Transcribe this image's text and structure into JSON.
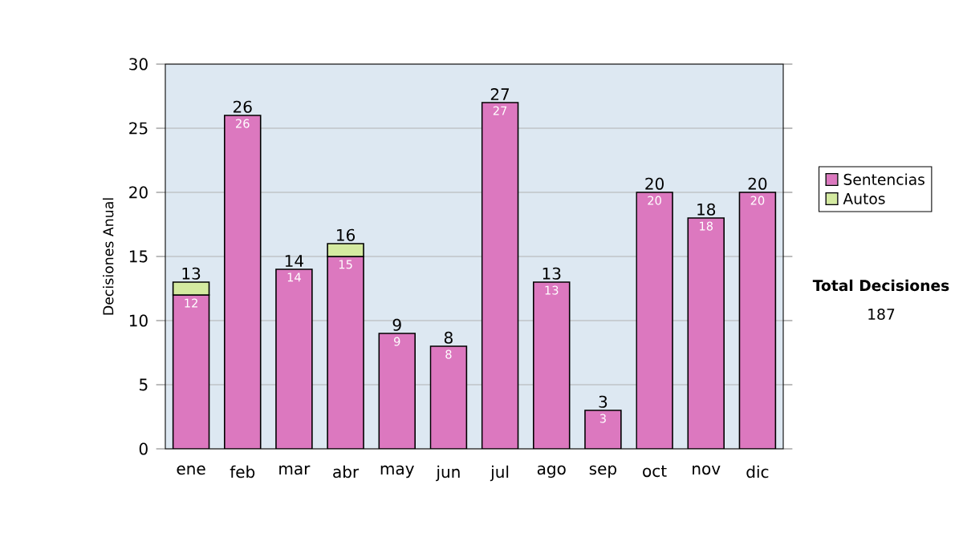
{
  "chart_data": {
    "type": "bar",
    "stacked": true,
    "ylabel": "Decisiones Anual",
    "categories": [
      "ene",
      "feb",
      "mar",
      "abr",
      "may",
      "jun",
      "jul",
      "ago",
      "sep",
      "oct",
      "nov",
      "dic"
    ],
    "series": [
      {
        "name": "Sentencias",
        "color": "#dc78bf",
        "values": [
          12,
          26,
          14,
          15,
          9,
          8,
          27,
          13,
          3,
          20,
          18,
          20
        ],
        "value_labels": [
          "12",
          "26",
          "14",
          "15",
          "9",
          "8",
          "27",
          "13",
          "3",
          "20",
          "18",
          "20"
        ]
      },
      {
        "name": "Autos",
        "color": "#d4eaa0",
        "values": [
          1,
          null,
          null,
          1,
          null,
          null,
          null,
          null,
          null,
          null,
          null,
          null
        ]
      }
    ],
    "totals": [
      "13",
      "26",
      "14",
      "16",
      "9",
      "8",
      "27",
      "13",
      "3",
      "20",
      "18",
      "20"
    ],
    "ylim": [
      0,
      30
    ],
    "yticks": [
      0,
      5,
      10,
      15,
      20,
      25,
      30
    ],
    "grid": "y",
    "legend": "right",
    "annotations": [
      "Total Decisiones",
      "187"
    ]
  }
}
